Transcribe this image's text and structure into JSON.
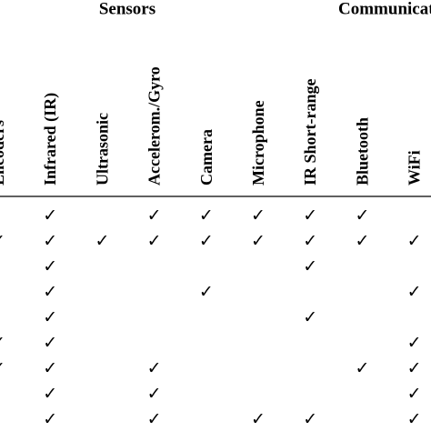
{
  "table": {
    "group_headers": [
      "Sensors",
      "Communication"
    ],
    "columns": [
      "Encoders",
      "Infrared (IR)",
      "Ultrasonic",
      "Accelerom./Gyro",
      "Camera",
      "Microphone",
      "IR Short-range",
      "Bluetooth",
      "WiFi"
    ],
    "rows": [
      [
        null,
        "✓",
        null,
        "✓",
        "✓",
        "✓",
        "✓",
        "✓",
        null
      ],
      [
        "✓",
        "✓",
        "✓",
        "✓",
        "✓",
        "✓",
        "✓",
        "✓",
        "✓"
      ],
      [
        null,
        "✓",
        null,
        null,
        null,
        null,
        "✓",
        null,
        null
      ],
      [
        null,
        "✓",
        null,
        null,
        "✓",
        null,
        null,
        null,
        "✓"
      ],
      [
        null,
        "✓",
        null,
        null,
        null,
        null,
        "✓",
        null,
        null
      ],
      [
        "✓",
        "✓",
        null,
        null,
        null,
        null,
        null,
        null,
        "✓"
      ],
      [
        "✓",
        "✓",
        null,
        "✓",
        null,
        null,
        null,
        "✓",
        "✓"
      ],
      [
        null,
        "✓",
        null,
        "✓",
        null,
        null,
        null,
        null,
        "✓"
      ],
      [
        null,
        "✓",
        null,
        "✓",
        null,
        "✓",
        "✓",
        null,
        "✓"
      ]
    ]
  }
}
